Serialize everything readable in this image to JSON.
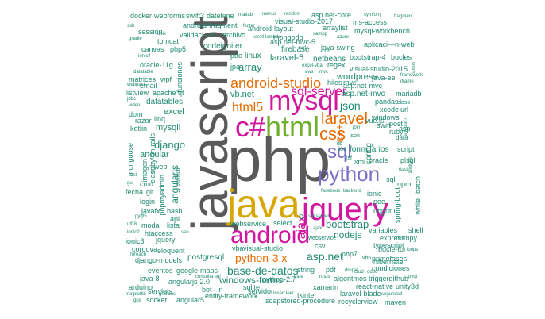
{
  "colors": {
    "gray": "#5a5a5a",
    "teal": "#1f8a70",
    "magenta": "#d1169f",
    "orange": "#e66a00",
    "gold": "#d7a600",
    "green": "#6eaf2d",
    "purple": "#7b6fc6"
  },
  "words": [
    {
      "text": "javascript"
    },
    {
      "text": "php"
    },
    {
      "text": "java"
    },
    {
      "text": "jquery"
    },
    {
      "text": "android"
    },
    {
      "text": "mysql"
    },
    {
      "text": "c#"
    },
    {
      "text": "html"
    },
    {
      "text": "python"
    },
    {
      "text": "css"
    },
    {
      "text": "sql"
    },
    {
      "text": "laravel"
    },
    {
      "text": "android-studio"
    },
    {
      "text": "sql-server"
    },
    {
      "text": "html5"
    },
    {
      "text": "json"
    },
    {
      "text": "c++"
    },
    {
      "text": "ajax"
    },
    {
      "text": "asp.net"
    },
    {
      "text": "python-3.x"
    },
    {
      "text": "base-de-datos"
    },
    {
      "text": "bootstrap"
    },
    {
      "text": "nodejs"
    },
    {
      "text": "windows-forms"
    },
    {
      "text": "vb.net"
    },
    {
      "text": "array"
    },
    {
      "text": "django"
    },
    {
      "text": "angular"
    },
    {
      "text": "mysqli"
    },
    {
      "text": "excel"
    },
    {
      "text": "angularjs"
    },
    {
      "text": "webservice"
    },
    {
      "text": "visual-studio"
    },
    {
      "text": "wordpress"
    },
    {
      "text": "netbeans"
    },
    {
      "text": "postgresql"
    },
    {
      "text": "spring"
    },
    {
      "text": "formularios"
    },
    {
      "text": "datatables"
    },
    {
      "text": "asp.net-mvc"
    },
    {
      "text": "laravel-5"
    },
    {
      "text": "linux"
    },
    {
      "text": "firebase"
    },
    {
      "text": "java-swing"
    },
    {
      "text": "codeigniter"
    },
    {
      "text": "vue.js"
    },
    {
      "text": "ubuntu"
    },
    {
      "text": "typescript"
    },
    {
      "text": "python-2.7"
    },
    {
      "text": "react-native"
    },
    {
      "text": "angular5"
    },
    {
      "text": "socket"
    },
    {
      "text": "servlets"
    },
    {
      "text": "arduino"
    },
    {
      "text": "java-8"
    },
    {
      "text": "eventos"
    },
    {
      "text": "google-maps"
    },
    {
      "text": "sqlite"
    },
    {
      "text": "xamarin"
    },
    {
      "text": "hibernate"
    },
    {
      "text": "entity-framework"
    },
    {
      "text": "soapstored-procedure"
    },
    {
      "text": "recyclerview"
    },
    {
      "text": "maven"
    },
    {
      "text": "laravel-blade"
    },
    {
      "text": "primefaces"
    },
    {
      "text": "condiciones"
    },
    {
      "text": "ionic3"
    },
    {
      "text": "cordova"
    },
    {
      "text": "eloquent"
    },
    {
      "text": "django-models"
    },
    {
      "text": "jquery"
    },
    {
      "text": "htaccess"
    },
    {
      "text": "modal"
    },
    {
      "text": "lista"
    },
    {
      "text": "javafx"
    },
    {
      "text": "login"
    },
    {
      "text": "fecha"
    },
    {
      "text": "git"
    },
    {
      "text": "cmd"
    },
    {
      "text": "web"
    },
    {
      "text": "phpmyadmin"
    },
    {
      "text": "bash"
    },
    {
      "text": "api"
    },
    {
      "text": "mongodb"
    },
    {
      "text": "regex"
    },
    {
      "text": "bootstrap-4"
    },
    {
      "text": "bucles"
    },
    {
      "text": "visual-studio-2015"
    },
    {
      "text": "java-ee"
    },
    {
      "text": "asp.net-mvc"
    },
    {
      "text": "pandas"
    },
    {
      "text": "class"
    },
    {
      "text": "windows"
    },
    {
      "text": "swift"
    },
    {
      "text": "xml"
    },
    {
      "text": "oracle"
    },
    {
      "text": "plsql"
    },
    {
      "text": "canvas"
    },
    {
      "text": "php5"
    },
    {
      "text": "oracle-11g"
    },
    {
      "text": "matrices"
    },
    {
      "text": "email"
    },
    {
      "text": "wpf"
    },
    {
      "text": "funciones"
    },
    {
      "text": "listview"
    },
    {
      "text": "apache"
    },
    {
      "text": "qt"
    },
    {
      "text": "dom"
    },
    {
      "text": "razor"
    },
    {
      "text": "kotlin"
    },
    {
      "text": "linq"
    },
    {
      "text": "ruby-on-rails"
    },
    {
      "text": "imagen"
    },
    {
      "text": "clase"
    },
    {
      "text": "mongoose"
    },
    {
      "text": "session"
    },
    {
      "text": "tomcat"
    },
    {
      "text": "android-fragment"
    },
    {
      "text": "validaci—n"
    },
    {
      "text": "archivo"
    },
    {
      "text": "datetime"
    },
    {
      "text": "swift3"
    },
    {
      "text": "webforms"
    },
    {
      "text": "docker"
    },
    {
      "text": "asp.net-core"
    },
    {
      "text": "ms-access"
    },
    {
      "text": "mysql-workbench"
    },
    {
      "text": "aplicaci—n-web"
    },
    {
      "text": "visual-studio-2017"
    },
    {
      "text": "android-layout"
    },
    {
      "text": "arraylist"
    },
    {
      "text": "asp.net-mvc-5"
    },
    {
      "text": "pdo"
    },
    {
      "text": "jpa"
    },
    {
      "text": "select"
    },
    {
      "text": "webservice"
    },
    {
      "text": "vba"
    },
    {
      "text": "csv"
    },
    {
      "text": "string"
    },
    {
      "text": "pdf"
    },
    {
      "text": "php7"
    },
    {
      "text": "vb6"
    },
    {
      "text": "algoritmos"
    },
    {
      "text": "triggergithub"
    },
    {
      "text": "unity3d"
    },
    {
      "text": "express"
    },
    {
      "text": "bucle-for"
    },
    {
      "text": "servidor"
    },
    {
      "text": "tkinter"
    },
    {
      "text": "bot—n"
    },
    {
      "text": "ionic"
    },
    {
      "text": "poo"
    },
    {
      "text": "sql"
    },
    {
      "text": "ios"
    },
    {
      "text": "spring-boot"
    },
    {
      "text": "while"
    },
    {
      "text": "batch"
    },
    {
      "text": "npm"
    },
    {
      "text": "c"
    },
    {
      "text": "ruby"
    },
    {
      "text": "post"
    },
    {
      "text": "asp"
    },
    {
      "text": "xcode"
    },
    {
      "text": "url"
    },
    {
      "text": "mariadb"
    },
    {
      "text": "script"
    },
    {
      "text": "data"
    },
    {
      "text": "shell"
    },
    {
      "text": "variables"
    },
    {
      "text": "numpy"
    },
    {
      "text": "hilos"
    },
    {
      "text": "mvc"
    },
    {
      "text": "angularjs-2.0"
    },
    {
      "text": "iis"
    },
    {
      "text": "json"
    },
    {
      "text": "jsf"
    },
    {
      "text": "symfony"
    },
    {
      "text": "fragment"
    },
    {
      "text": "ssh"
    },
    {
      "text": "gradle"
    },
    {
      "text": "unix"
    },
    {
      "text": "menus"
    },
    {
      "text": "random"
    },
    {
      "text": "matlab"
    },
    {
      "text": "scroll"
    },
    {
      "text": "lambda"
    },
    {
      "text": "flutter"
    },
    {
      "text": "xampp"
    },
    {
      "text": "azure"
    },
    {
      "text": "curl"
    },
    {
      "text": "aws"
    },
    {
      "text": "wcf"
    },
    {
      "text": "excel-vba"
    },
    {
      "text": "webpack"
    },
    {
      "text": "datatable"
    },
    {
      "text": "video"
    },
    {
      "text": "jdbc"
    },
    {
      "text": "ionic4"
    },
    {
      "text": "framework"
    },
    {
      "text": "iframe"
    },
    {
      "text": "axios"
    },
    {
      "text": "flask"
    },
    {
      "text": "sockets"
    },
    {
      "text": "gui"
    },
    {
      "text": "rest"
    },
    {
      "text": "ionic2"
    },
    {
      "text": "foreach"
    },
    {
      "text": "consulta"
    },
    {
      "text": "sql"
    },
    {
      "text": "rutas"
    },
    {
      "text": "date"
    },
    {
      "text": "pyqt5"
    },
    {
      "text": "utf-8"
    },
    {
      "text": "seo"
    },
    {
      "text": "leer"
    },
    {
      "text": "drupal"
    },
    {
      "text": "seguridad"
    },
    {
      "text": "gps"
    },
    {
      "text": "graficos"
    },
    {
      "text": "matplotlib"
    },
    {
      "text": "insert"
    },
    {
      "text": "crud"
    },
    {
      "text": "odbc"
    },
    {
      "text": "pyqt"
    },
    {
      "text": "loops"
    },
    {
      "text": "facebook"
    },
    {
      "text": "backend"
    },
    {
      "text": "bluetooth"
    },
    {
      "text": "join"
    },
    {
      "text": "mvc"
    },
    {
      "text": "sql-server"
    },
    {
      "text": "angular7"
    },
    {
      "text": "ajax"
    },
    {
      "text": "list"
    }
  ]
}
